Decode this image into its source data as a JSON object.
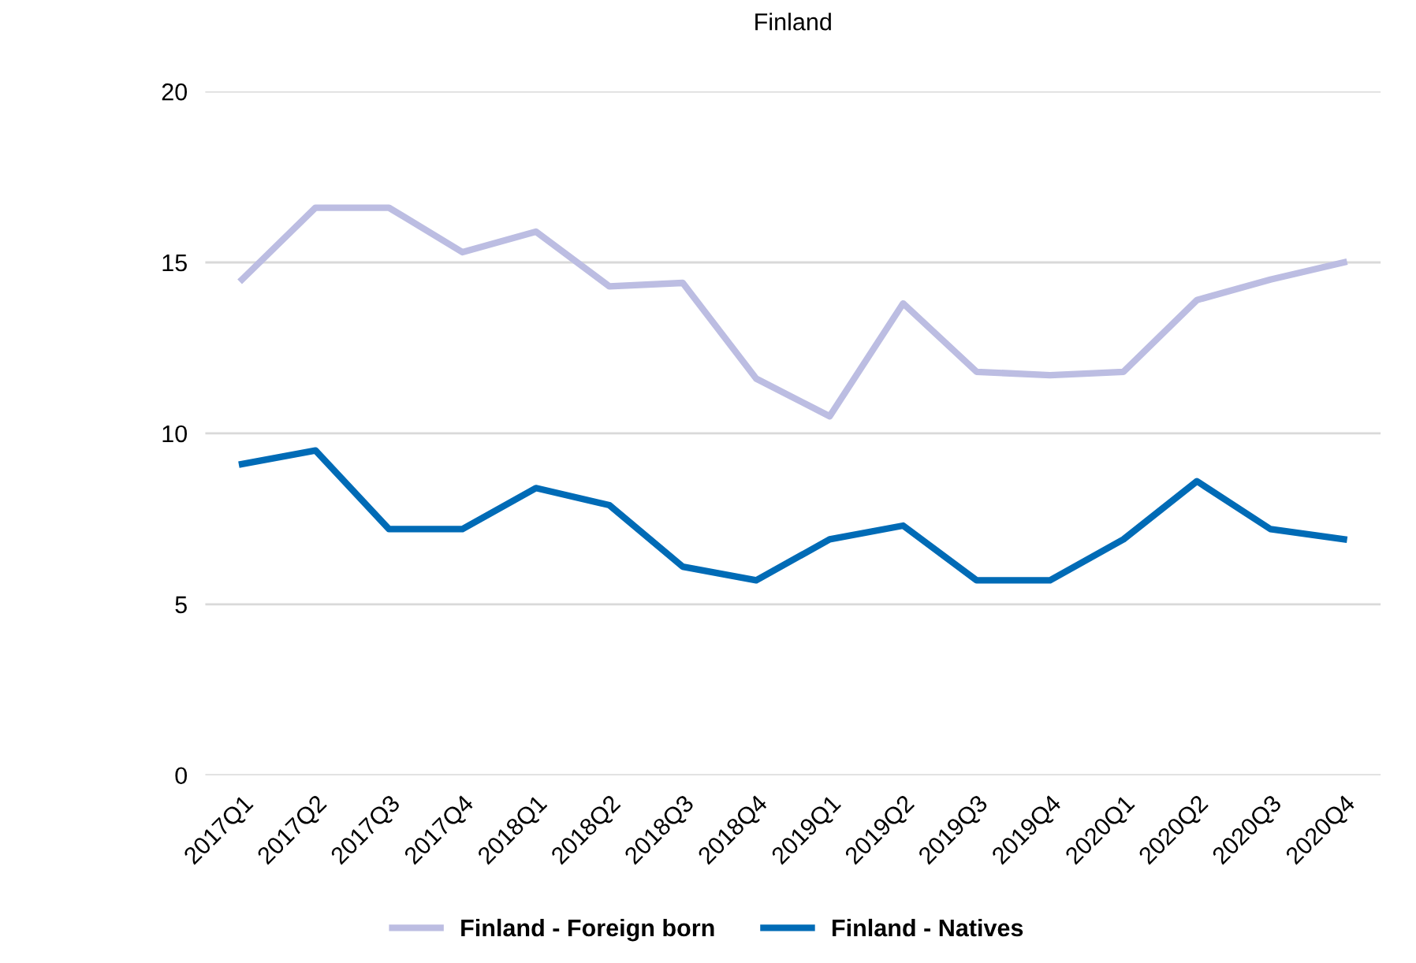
{
  "chart_data": {
    "type": "line",
    "title": "Finland",
    "categories": [
      "2017Q1",
      "2017Q2",
      "2017Q3",
      "2017Q4",
      "2018Q1",
      "2018Q2",
      "2018Q3",
      "2018Q4",
      "2019Q1",
      "2019Q2",
      "2019Q3",
      "2019Q4",
      "2020Q1",
      "2020Q2",
      "2020Q3",
      "2020Q4"
    ],
    "series": [
      {
        "name": "Finland - Foreign born",
        "color": "#bcbde2",
        "values": [
          14.5,
          16.6,
          16.6,
          15.3,
          15.9,
          14.3,
          14.4,
          11.6,
          10.5,
          13.8,
          11.8,
          11.7,
          11.8,
          13.9,
          14.5,
          15.0
        ]
      },
      {
        "name": "Finland - Natives",
        "color": "#006bb6",
        "values": [
          9.1,
          9.5,
          7.2,
          7.2,
          8.4,
          7.9,
          6.1,
          5.7,
          6.9,
          7.3,
          5.7,
          5.7,
          6.9,
          8.6,
          7.2,
          6.9
        ]
      }
    ],
    "ylim": [
      0,
      20
    ],
    "yticks": [
      0,
      5,
      10,
      15,
      20
    ],
    "grid": "y",
    "legend": "bottom",
    "marker": "none",
    "line_style": "solid"
  }
}
